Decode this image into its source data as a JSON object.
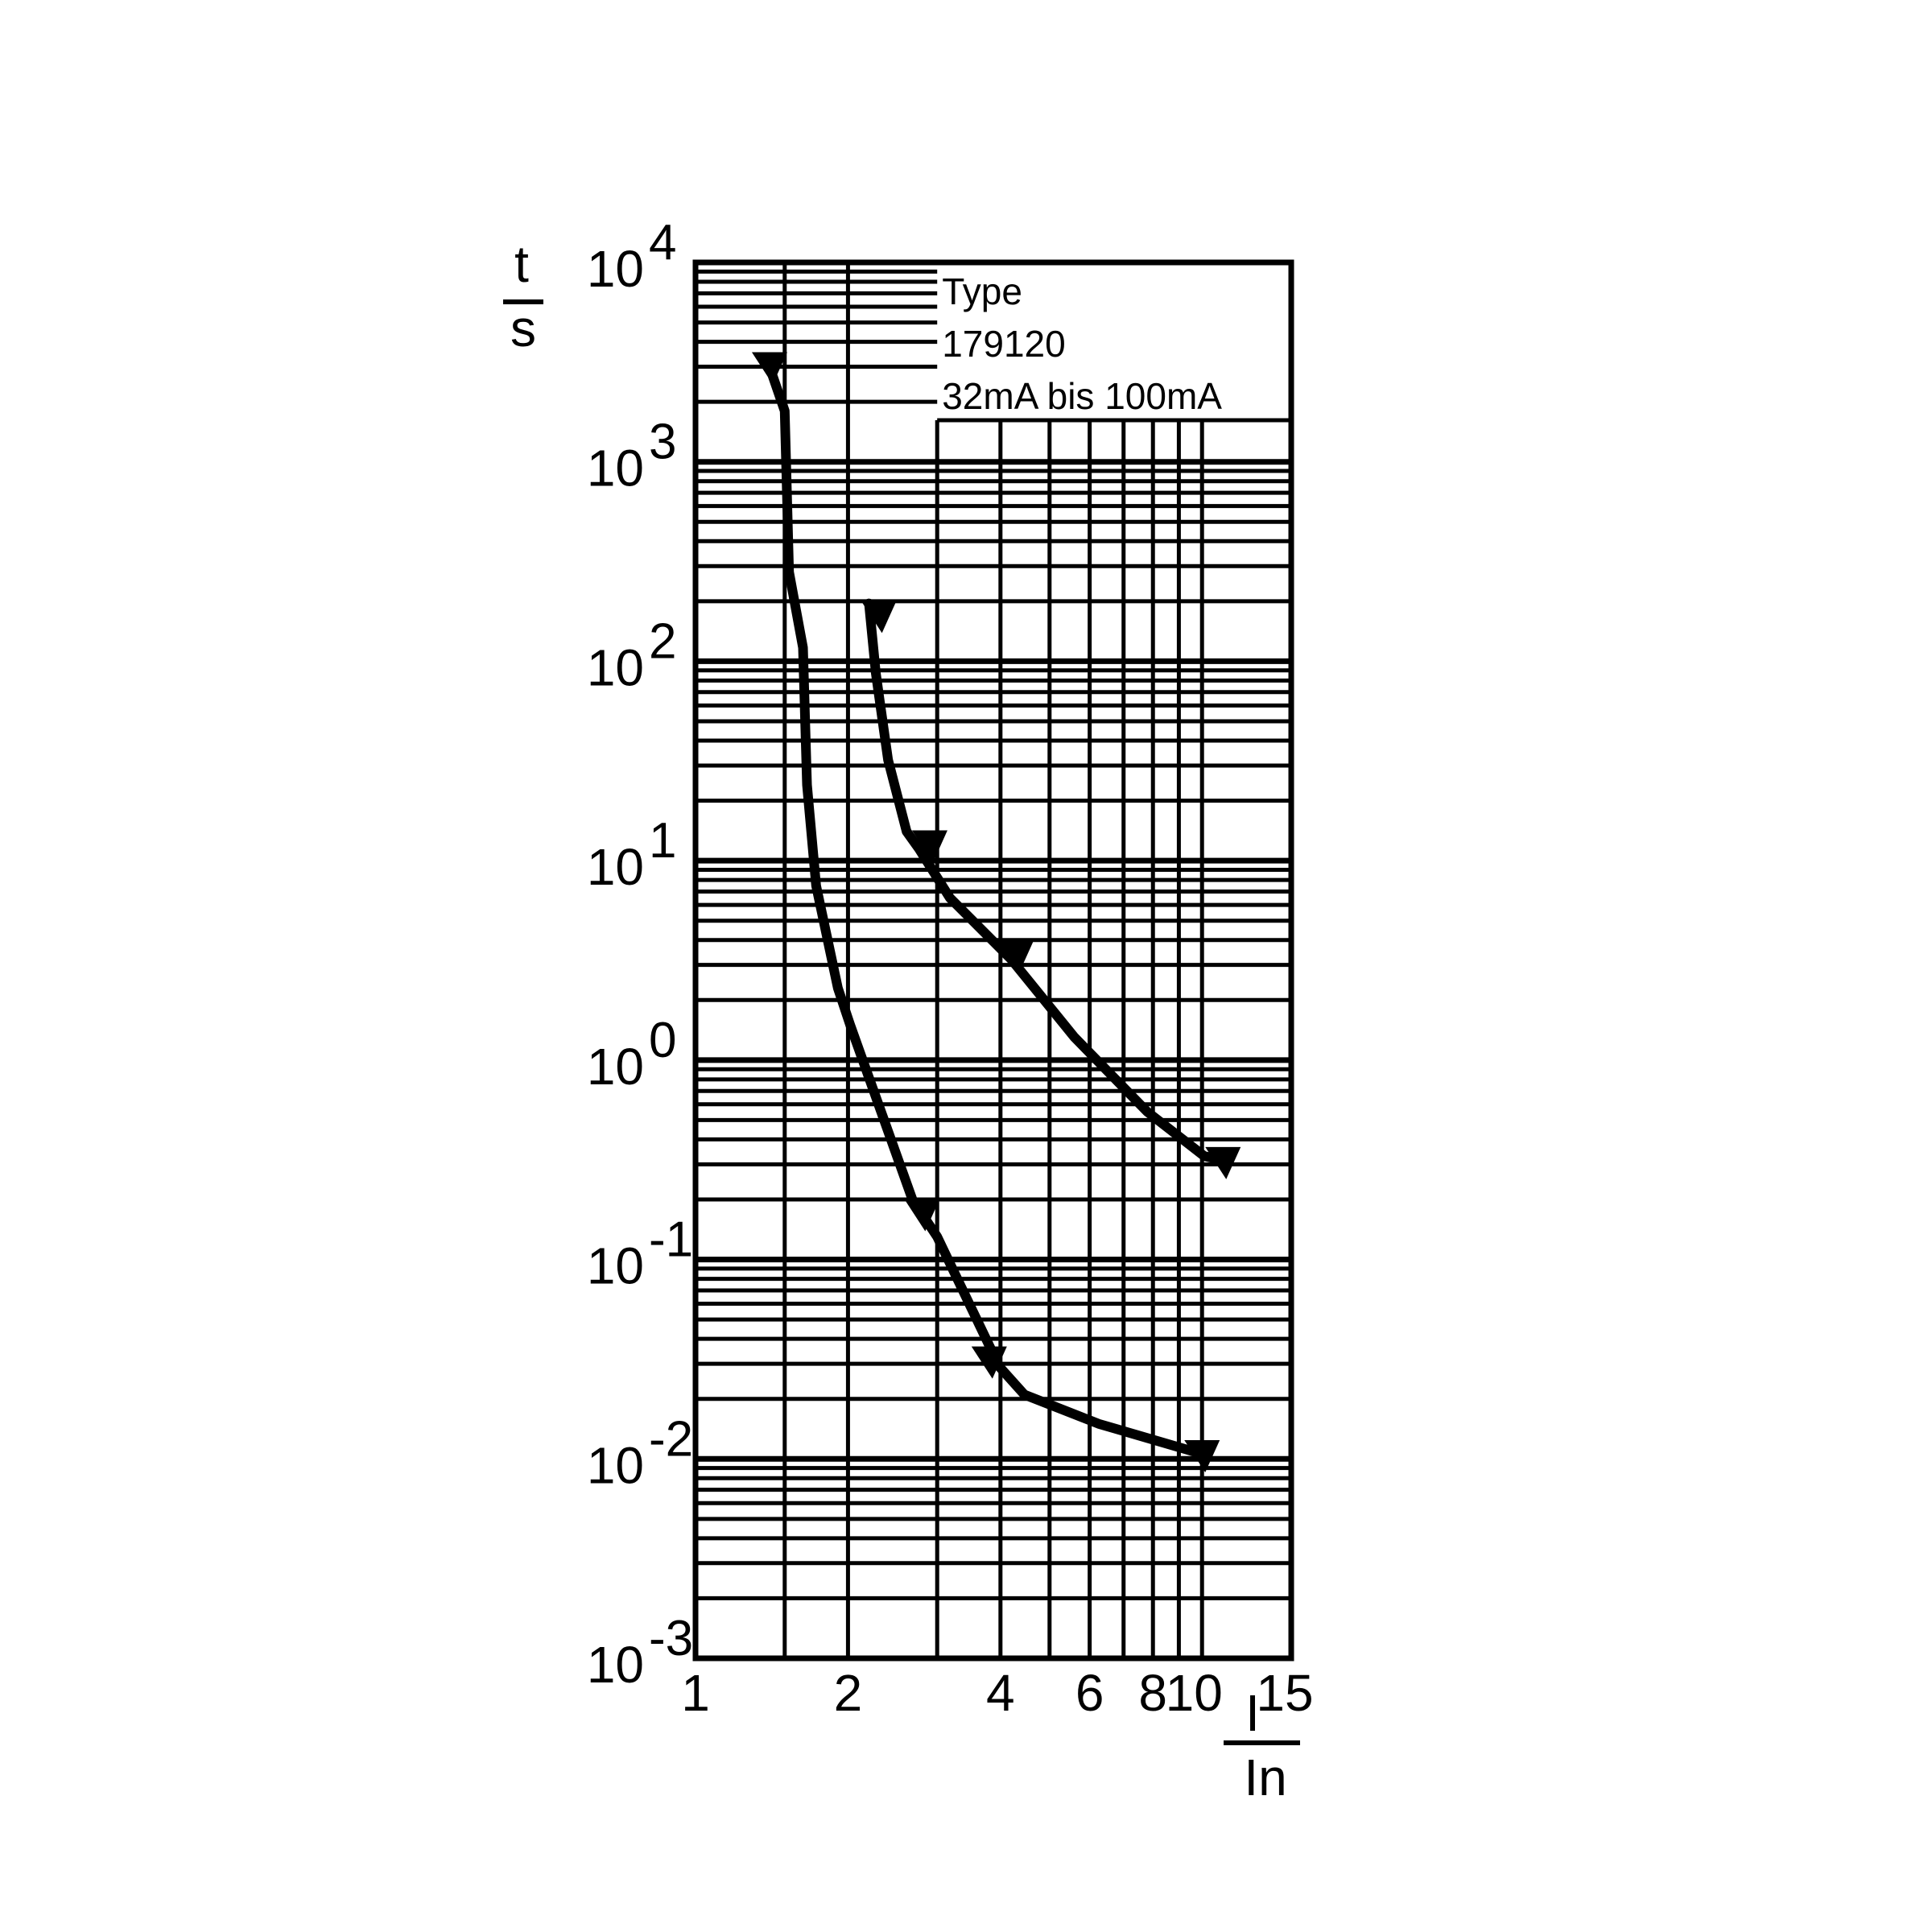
{
  "chart_data": {
    "type": "line",
    "title": "",
    "legend": {
      "lines": [
        "Type",
        "179120",
        "32mA bis 100mA"
      ],
      "placement": "top-right"
    },
    "ylabel": {
      "numerator": "t",
      "denominator": "s"
    },
    "xlabel": {
      "numerator": "I",
      "denominator": "In"
    },
    "x_scale": "log",
    "y_scale": "log",
    "xlim": [
      1,
      15
    ],
    "ylim": [
      0.001,
      10000
    ],
    "grid": true,
    "x_ticks": [
      {
        "value": 1,
        "label": "1"
      },
      {
        "value": 2,
        "label": "2"
      },
      {
        "value": 4,
        "label": "4"
      },
      {
        "value": 6,
        "label": "6"
      },
      {
        "value": 8,
        "label": "8"
      },
      {
        "value": 10,
        "label": "10"
      },
      {
        "value": 15,
        "label": "15"
      }
    ],
    "x_gridlines": [
      1.5,
      2,
      3,
      4,
      5,
      6,
      7,
      8,
      9,
      10
    ],
    "y_ticks": [
      {
        "value": 10000,
        "base": "10",
        "exp": "4"
      },
      {
        "value": 1000,
        "base": "10",
        "exp": "3"
      },
      {
        "value": 100,
        "base": "10",
        "exp": "2"
      },
      {
        "value": 10,
        "base": "10",
        "exp": "1"
      },
      {
        "value": 1,
        "base": "10",
        "exp": "0"
      },
      {
        "value": 0.1,
        "base": "10",
        "exp": "-1"
      },
      {
        "value": 0.01,
        "base": "10",
        "exp": "-2"
      },
      {
        "value": 0.001,
        "base": "10",
        "exp": "-3"
      }
    ],
    "series": [
      {
        "color": "#000000",
        "x": [
          1.4,
          1.5,
          1.53,
          1.63,
          1.66,
          1.73,
          1.91,
          2.02,
          2.68,
          3.0,
          3.98,
          4.46,
          6.25,
          10.1
        ],
        "y": [
          3000,
          1800,
          280,
          117,
          24,
          7.5,
          2.3,
          1.5,
          0.2,
          0.13,
          0.029,
          0.021,
          0.015,
          0.0105
        ],
        "markers": [
          {
            "x": 1.4,
            "y": 3000
          },
          {
            "x": 2.8,
            "y": 0.17
          },
          {
            "x": 3.8,
            "y": 0.031
          },
          {
            "x": 10.0,
            "y": 0.0105
          }
        ]
      },
      {
        "color": "#000000",
        "x": [
          2.2,
          2.27,
          2.4,
          2.61,
          2.76,
          3.18,
          4.2,
          5.6,
          7.8,
          10.1,
          11.3
        ],
        "y": [
          195,
          87,
          32,
          14,
          11.5,
          6.5,
          3.2,
          1.3,
          0.55,
          0.33,
          0.31
        ],
        "markers": [
          {
            "x": 2.3,
            "y": 170
          },
          {
            "x": 2.9,
            "y": 12
          },
          {
            "x": 4.3,
            "y": 3.4
          },
          {
            "x": 11.0,
            "y": 0.31
          }
        ]
      }
    ]
  }
}
